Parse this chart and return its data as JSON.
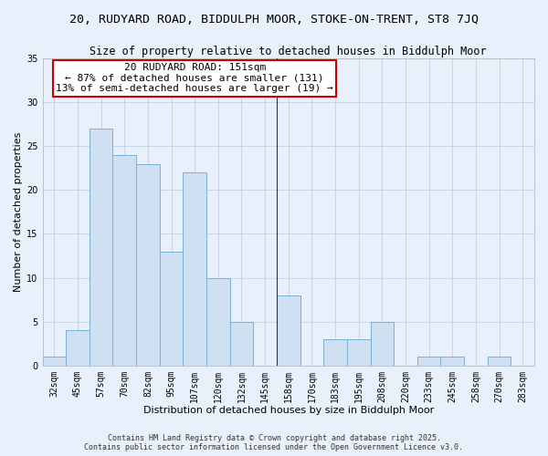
{
  "title": "20, RUDYARD ROAD, BIDDULPH MOOR, STOKE-ON-TRENT, ST8 7JQ",
  "subtitle": "Size of property relative to detached houses in Biddulph Moor",
  "xlabel": "Distribution of detached houses by size in Biddulph Moor",
  "ylabel": "Number of detached properties",
  "bin_labels": [
    "32sqm",
    "45sqm",
    "57sqm",
    "70sqm",
    "82sqm",
    "95sqm",
    "107sqm",
    "120sqm",
    "132sqm",
    "145sqm",
    "158sqm",
    "170sqm",
    "183sqm",
    "195sqm",
    "208sqm",
    "220sqm",
    "233sqm",
    "245sqm",
    "258sqm",
    "270sqm",
    "283sqm"
  ],
  "bar_heights": [
    1,
    4,
    27,
    24,
    23,
    13,
    22,
    10,
    5,
    0,
    8,
    0,
    3,
    3,
    5,
    0,
    1,
    1,
    0,
    1,
    0
  ],
  "bar_color": "#cfe0f3",
  "bar_edge_color": "#7aafd4",
  "grid_color": "#c8d8ec",
  "bg_color": "#e8f0fb",
  "ylim": [
    0,
    35
  ],
  "yticks": [
    0,
    5,
    10,
    15,
    20,
    25,
    30,
    35
  ],
  "property_line_color": "#333333",
  "annotation_title": "20 RUDYARD ROAD: 151sqm",
  "annotation_line1": "← 87% of detached houses are smaller (131)",
  "annotation_line2": "13% of semi-detached houses are larger (19) →",
  "annotation_box_color": "#ffffff",
  "annotation_box_edge": "#cc0000",
  "footnote1": "Contains HM Land Registry data © Crown copyright and database right 2025.",
  "footnote2": "Contains public sector information licensed under the Open Government Licence v3.0.",
  "title_fontsize": 9.5,
  "subtitle_fontsize": 8.5,
  "xlabel_fontsize": 8,
  "ylabel_fontsize": 8,
  "tick_fontsize": 7,
  "annotation_fontsize": 8,
  "footnote_fontsize": 6
}
